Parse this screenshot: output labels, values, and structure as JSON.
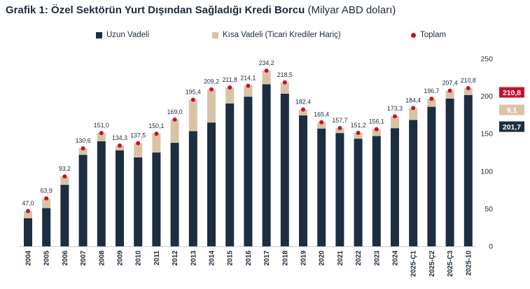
{
  "header": {
    "title_bold": "Grafik 1: Özel Sektörün Yurt Dışından Sağladığı Kredi Borcu",
    "title_rest": "(Milyar ABD doları)"
  },
  "colors": {
    "long": "#1c2e40",
    "short": "#d9c3a5",
    "total": "#c8102e",
    "axis_text": "#1d2b3a"
  },
  "chart_data": {
    "type": "bar",
    "stacked": true,
    "categories": [
      "2004",
      "2005",
      "2006",
      "2007",
      "2008",
      "2009",
      "2010",
      "2011",
      "2012",
      "2013",
      "2014",
      "2015",
      "2016",
      "2017",
      "2018",
      "2019",
      "2020",
      "2021",
      "2022",
      "2023",
      "2024",
      "2025-Ç1",
      "2025-Ç2",
      "2025-Ç3",
      "2025-10"
    ],
    "series": [
      {
        "name": "Uzun Vadeli",
        "values": [
          37.5,
          51,
          82,
          122,
          140,
          128,
          118.5,
          125,
          138,
          153.5,
          165,
          190.5,
          199.5,
          216,
          203.5,
          174.5,
          157,
          151,
          143.5,
          147,
          157.5,
          168.5,
          186,
          197,
          201.7
        ]
      },
      {
        "name": "Kısa Vadeli (Ticari Krediler Hariç)",
        "values": [
          9.5,
          12.9,
          11.2,
          8.6,
          11,
          6.3,
          19,
          25.1,
          31,
          41.9,
          44.2,
          21.3,
          14.6,
          18.2,
          15,
          7.9,
          8.4,
          6.7,
          7.7,
          9.1,
          15.8,
          15.9,
          10.7,
          10.4,
          9.1
        ]
      }
    ],
    "totals": {
      "name": "Toplam",
      "values": [
        47.0,
        63.9,
        93.2,
        130.6,
        151.0,
        134.3,
        137.5,
        150.1,
        169.0,
        195.4,
        209.2,
        211.8,
        214.1,
        234.2,
        218.5,
        182.4,
        165.4,
        157.7,
        151.2,
        156.1,
        173.3,
        184.4,
        196.7,
        207.4,
        210.8
      ],
      "labels": [
        "47,0",
        "63,9",
        "93,2",
        "130,6",
        "151,0",
        "134,3",
        "137,5",
        "150,1",
        "169,0",
        "195,4",
        "209,2",
        "211,8",
        "214,1",
        "234,2",
        "218,5",
        "182,4",
        "165,4",
        "157,7",
        "151,2",
        "156,1",
        "173,3",
        "184,4",
        "196,7",
        "207,4",
        "210,8"
      ]
    },
    "y_axis": {
      "position": "right",
      "ylim": [
        0,
        250
      ],
      "ticks": [
        0,
        50,
        100,
        150,
        200,
        250
      ]
    },
    "last_value_boxes": [
      {
        "label": "210,8",
        "value": 210.8,
        "color": "#c8102e",
        "text_color": "#ffffff"
      },
      {
        "label": "9,1",
        "value": 9.1,
        "color": "#d9c3a5",
        "text_color": "#ffffff"
      },
      {
        "label": "201,7",
        "value": 201.7,
        "color": "#1c2e40",
        "text_color": "#ffffff"
      }
    ],
    "legend": {
      "position": "top",
      "items": [
        {
          "label": "Uzun Vadeli",
          "marker": "square",
          "color": "#1c2e40"
        },
        {
          "label": "Kısa Vadeli (Ticari Krediler Hariç)",
          "marker": "square",
          "color": "#d9c3a5"
        },
        {
          "label": "Toplam",
          "marker": "dot",
          "color": "#c8102e"
        }
      ]
    },
    "grid": false
  }
}
